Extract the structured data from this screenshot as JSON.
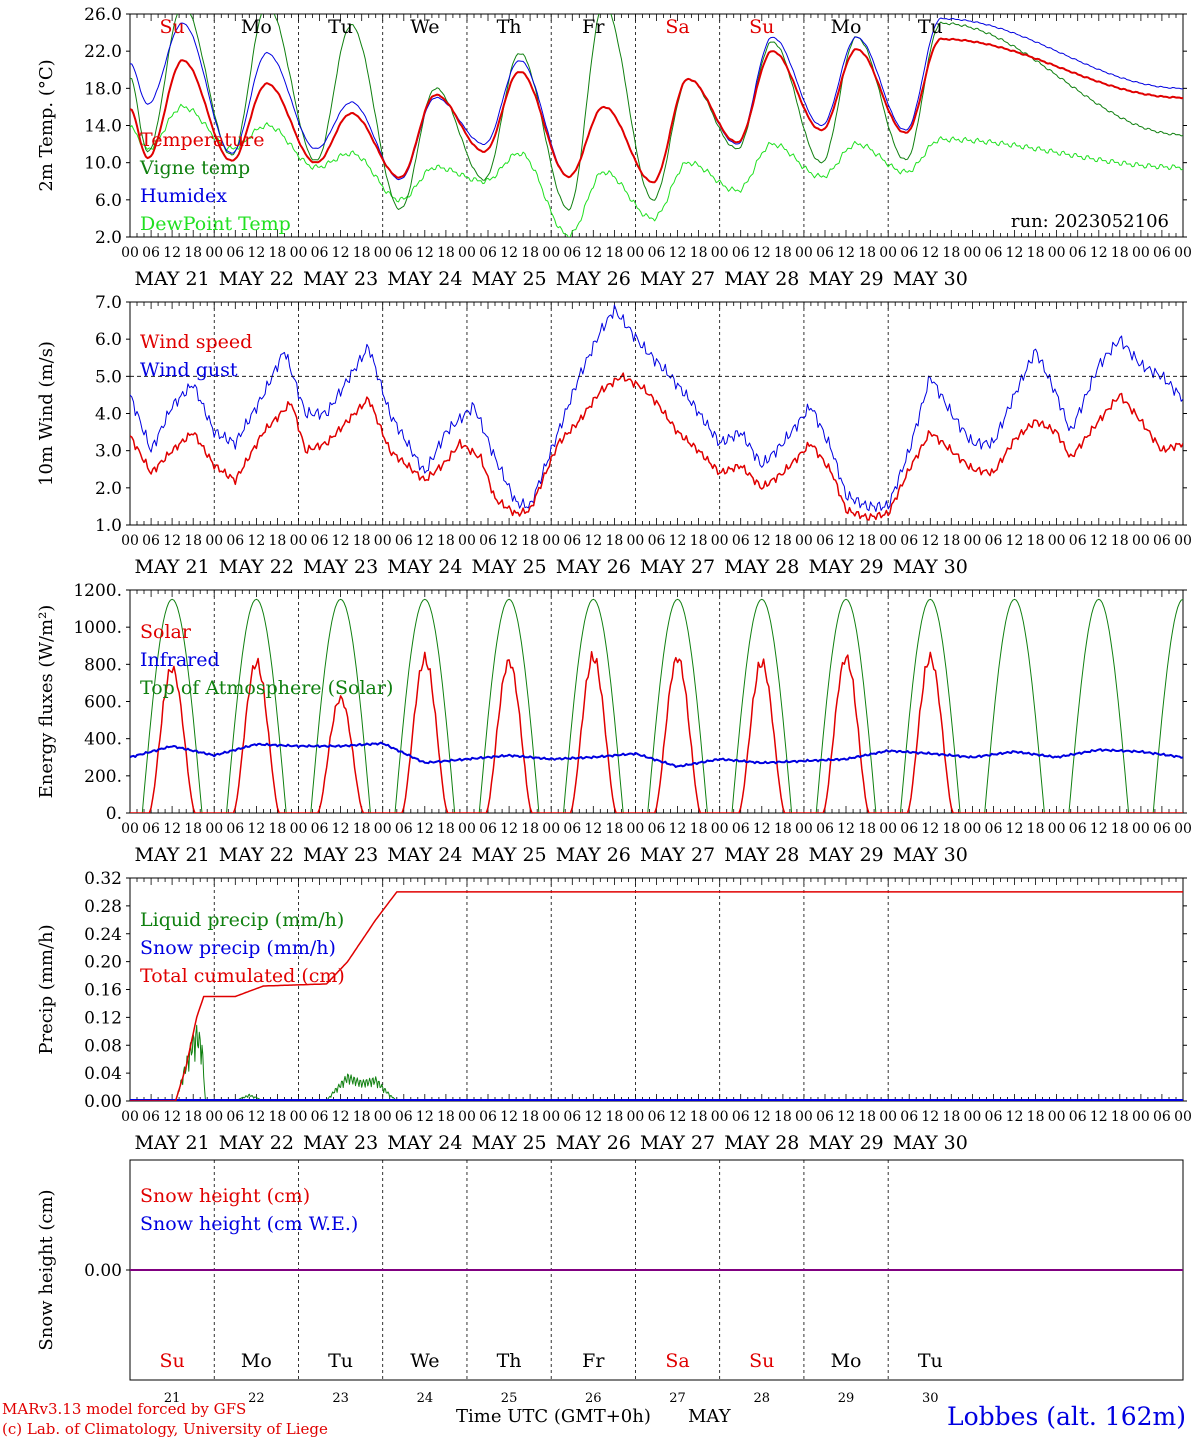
{
  "run_label": "run: 2023052106",
  "days": [
    "MAY 21",
    "MAY 22",
    "MAY 23",
    "MAY 24",
    "MAY 25",
    "MAY 26",
    "MAY 27",
    "MAY 28",
    "MAY 29",
    "MAY 30"
  ],
  "hour_ticks": [
    "00",
    "06",
    "12",
    "18"
  ],
  "hour_tick_end": "00",
  "weekdays": [
    "Su",
    "Mo",
    "Tu",
    "We",
    "Th",
    "Fr",
    "Sa",
    "Su",
    "Mo",
    "Tu"
  ],
  "weekday_colors": [
    "#e00000",
    "#000000",
    "#000000",
    "#000000",
    "#000000",
    "#000000",
    "#e00000",
    "#e00000",
    "#000000",
    "#000000"
  ],
  "day_numbers": [
    "21",
    "22",
    "23",
    "24",
    "25",
    "26",
    "27",
    "28",
    "29",
    "30"
  ],
  "footer": {
    "model": "MARv3.13 model forced by GFS",
    "copyright": "(c) Lab. of Climatology, University of Liege",
    "xlabel": "Time UTC (GMT+0h)",
    "month": "MAY",
    "station": "Lobbes (alt. 162m)"
  },
  "colors": {
    "red": "#e00000",
    "green": "#108010",
    "blue": "#0000e0",
    "lightgreen": "#20e020",
    "purple": "#800080"
  },
  "chart_data": [
    {
      "type": "line",
      "ylabel": "2m Temp. (°C)",
      "ylim": [
        2,
        26
      ],
      "yticks": [
        "2.0",
        "6.0",
        "10.0",
        "14.0",
        "18.0",
        "22.0",
        "26.0"
      ],
      "series": [
        {
          "name": "Temperature",
          "color": "red",
          "min": [
            10.5,
            10.2,
            10.0,
            8.4,
            11.2,
            8.5,
            7.9,
            12.2,
            13.5,
            13.2,
            17.0
          ],
          "max": [
            21.0,
            18.5,
            15.3,
            17.3,
            19.8,
            16.0,
            19.0,
            22.0,
            22.2,
            23.3
          ]
        },
        {
          "name": "Vigne temp",
          "color": "green",
          "min": [
            11.2,
            10.8,
            10.2,
            5.0,
            8.2,
            5.0,
            6.0,
            11.5,
            10.0,
            10.3,
            13.0
          ],
          "max": [
            27.0,
            27.0,
            24.8,
            18.0,
            21.8,
            27.0,
            19.0,
            23.0,
            23.5,
            25.0
          ]
        },
        {
          "name": "Humidex",
          "color": "blue",
          "min": [
            16.3,
            11.0,
            11.5,
            8.2,
            12.0,
            8.5,
            7.9,
            12.0,
            14.0,
            13.5,
            18.0
          ],
          "max": [
            25.0,
            21.8,
            16.5,
            17.0,
            21.0,
            16.0,
            19.0,
            23.5,
            23.5,
            25.5
          ]
        },
        {
          "name": "DewPoint Temp",
          "color": "lightgreen",
          "min": [
            11.5,
            11.5,
            9.5,
            6.0,
            8.0,
            2.2,
            4.0,
            7.0,
            8.5,
            9.0,
            9.5
          ],
          "max": [
            16.0,
            14.0,
            11.0,
            9.5,
            11.0,
            9.0,
            10.0,
            12.0,
            12.0,
            12.5
          ]
        }
      ]
    },
    {
      "type": "line",
      "ylabel": "10m Wind (m/s)",
      "ylim": [
        1,
        7
      ],
      "ref_line": 5,
      "yticks": [
        "1.0",
        "2.0",
        "3.0",
        "4.0",
        "5.0",
        "6.0",
        "7.0"
      ],
      "series": [
        {
          "name": "Wind speed",
          "color": "red",
          "points": [
            [
              0,
              3.4
            ],
            [
              6,
              2.4
            ],
            [
              12,
              3.0
            ],
            [
              18,
              3.5
            ],
            [
              24,
              2.6
            ],
            [
              30,
              2.2
            ],
            [
              38,
              3.5
            ],
            [
              46,
              4.3
            ],
            [
              50,
              3.0
            ],
            [
              56,
              3.2
            ],
            [
              68,
              4.4
            ],
            [
              74,
              3.0
            ],
            [
              84,
              2.2
            ],
            [
              90,
              2.7
            ],
            [
              94,
              3.2
            ],
            [
              100,
              2.8
            ],
            [
              104,
              1.7
            ],
            [
              110,
              1.3
            ],
            [
              114,
              1.4
            ],
            [
              122,
              3.2
            ],
            [
              128,
              3.8
            ],
            [
              134,
              4.6
            ],
            [
              140,
              5.0
            ],
            [
              146,
              4.7
            ],
            [
              150,
              4.3
            ],
            [
              156,
              3.5
            ],
            [
              162,
              3.0
            ],
            [
              168,
              2.4
            ],
            [
              174,
              2.6
            ],
            [
              180,
              2.0
            ],
            [
              186,
              2.4
            ],
            [
              194,
              3.2
            ],
            [
              200,
              2.4
            ],
            [
              204,
              1.4
            ],
            [
              210,
              1.2
            ],
            [
              216,
              1.3
            ],
            [
              222,
              2.5
            ],
            [
              228,
              3.5
            ],
            [
              234,
              3.0
            ],
            [
              240,
              2.5
            ],
            [
              246,
              2.4
            ],
            [
              252,
              3.3
            ],
            [
              258,
              3.8
            ],
            [
              264,
              3.5
            ],
            [
              268,
              2.8
            ],
            [
              276,
              3.8
            ],
            [
              282,
              4.5
            ],
            [
              288,
              3.8
            ],
            [
              294,
              3.0
            ],
            [
              300,
              3.2
            ]
          ]
        },
        {
          "name": "Wind gust",
          "color": "blue",
          "points": [
            [
              0,
              4.5
            ],
            [
              6,
              3.0
            ],
            [
              12,
              4.2
            ],
            [
              18,
              4.8
            ],
            [
              24,
              3.5
            ],
            [
              30,
              3.2
            ],
            [
              38,
              4.5
            ],
            [
              44,
              5.7
            ],
            [
              50,
              4.0
            ],
            [
              56,
              4.0
            ],
            [
              68,
              5.8
            ],
            [
              74,
              4.0
            ],
            [
              84,
              2.4
            ],
            [
              90,
              3.5
            ],
            [
              98,
              4.2
            ],
            [
              104,
              2.8
            ],
            [
              110,
              1.6
            ],
            [
              114,
              1.5
            ],
            [
              122,
              3.5
            ],
            [
              128,
              5.0
            ],
            [
              134,
              6.2
            ],
            [
              138,
              6.8
            ],
            [
              146,
              5.8
            ],
            [
              154,
              5.0
            ],
            [
              160,
              4.3
            ],
            [
              168,
              3.2
            ],
            [
              174,
              3.5
            ],
            [
              180,
              2.6
            ],
            [
              186,
              3.2
            ],
            [
              194,
              4.2
            ],
            [
              200,
              3.0
            ],
            [
              204,
              1.8
            ],
            [
              210,
              1.5
            ],
            [
              216,
              1.5
            ],
            [
              222,
              3.0
            ],
            [
              228,
              5.0
            ],
            [
              234,
              4.0
            ],
            [
              240,
              3.2
            ],
            [
              246,
              3.2
            ],
            [
              252,
              4.5
            ],
            [
              258,
              5.7
            ],
            [
              264,
              4.5
            ],
            [
              268,
              3.5
            ],
            [
              276,
              5.3
            ],
            [
              282,
              6.0
            ],
            [
              288,
              5.3
            ],
            [
              294,
              5.0
            ],
            [
              300,
              4.4
            ]
          ]
        }
      ]
    },
    {
      "type": "line",
      "ylabel": "Energy fluxes (W/m²)",
      "ylim": [
        0,
        1200
      ],
      "yticks": [
        "0.",
        "200.",
        "400.",
        "600.",
        "800.",
        "1000.",
        "1200."
      ],
      "series": [
        {
          "name": "Solar",
          "color": "red",
          "peaks": [
            820,
            850,
            650,
            870,
            860,
            880,
            880,
            850,
            880,
            880
          ]
        },
        {
          "name": "Infrared",
          "color": "blue",
          "points": [
            [
              0,
              300
            ],
            [
              12,
              360
            ],
            [
              24,
              310
            ],
            [
              36,
              370
            ],
            [
              48,
              360
            ],
            [
              60,
              360
            ],
            [
              72,
              375
            ],
            [
              84,
              270
            ],
            [
              96,
              290
            ],
            [
              108,
              310
            ],
            [
              120,
              290
            ],
            [
              132,
              300
            ],
            [
              144,
              320
            ],
            [
              156,
              250
            ],
            [
              168,
              290
            ],
            [
              180,
              270
            ],
            [
              192,
              280
            ],
            [
              204,
              290
            ],
            [
              216,
              335
            ],
            [
              228,
              320
            ],
            [
              240,
              300
            ],
            [
              252,
              330
            ],
            [
              264,
              300
            ],
            [
              276,
              340
            ],
            [
              288,
              330
            ],
            [
              300,
              300
            ]
          ]
        },
        {
          "name": "Top of Atmosphere (Solar)",
          "color": "green",
          "peak": 1150
        }
      ]
    },
    {
      "type": "line",
      "ylabel": "Precip (mm/h)",
      "ylim": [
        0,
        0.32
      ],
      "yticks": [
        "0.00",
        "0.04",
        "0.08",
        "0.12",
        "0.16",
        "0.20",
        "0.24",
        "0.28",
        "0.32"
      ],
      "series": [
        {
          "name": "Liquid precip (mm/h)",
          "color": "green",
          "points": [
            [
              0,
              0
            ],
            [
              13,
              0
            ],
            [
              14.5,
              0.03
            ],
            [
              16,
              0.06
            ],
            [
              17.5,
              0.09
            ],
            [
              19,
              0.11
            ],
            [
              20.5,
              0.09
            ],
            [
              21.5,
              0
            ],
            [
              30,
              0
            ],
            [
              34,
              0.01
            ],
            [
              38,
              0
            ],
            [
              56,
              0
            ],
            [
              58,
              0.015
            ],
            [
              62,
              0.04
            ],
            [
              66,
              0.03
            ],
            [
              70,
              0.035
            ],
            [
              74,
              0.01
            ],
            [
              76,
              0
            ],
            [
              300,
              0
            ]
          ]
        },
        {
          "name": "Snow precip (mm/h)",
          "color": "blue",
          "points": [
            [
              0,
              0
            ],
            [
              300,
              0
            ]
          ]
        },
        {
          "name": "Total cumulated (cm)",
          "color": "red",
          "points": [
            [
              0,
              0
            ],
            [
              13,
              0
            ],
            [
              16,
              0.05
            ],
            [
              19,
              0.12
            ],
            [
              21,
              0.15
            ],
            [
              30,
              0.15
            ],
            [
              38,
              0.165
            ],
            [
              56,
              0.168
            ],
            [
              62,
              0.2
            ],
            [
              70,
              0.26
            ],
            [
              76,
              0.3
            ],
            [
              300,
              0.3
            ]
          ]
        }
      ]
    },
    {
      "type": "line",
      "ylabel": "Snow height (cm)",
      "yticks": [
        "0.00"
      ],
      "series": [
        {
          "name": "Snow height (cm)",
          "color": "red",
          "value": 0
        },
        {
          "name": "Snow height (cm W.E.)",
          "color": "blue",
          "value": 0
        }
      ]
    }
  ]
}
